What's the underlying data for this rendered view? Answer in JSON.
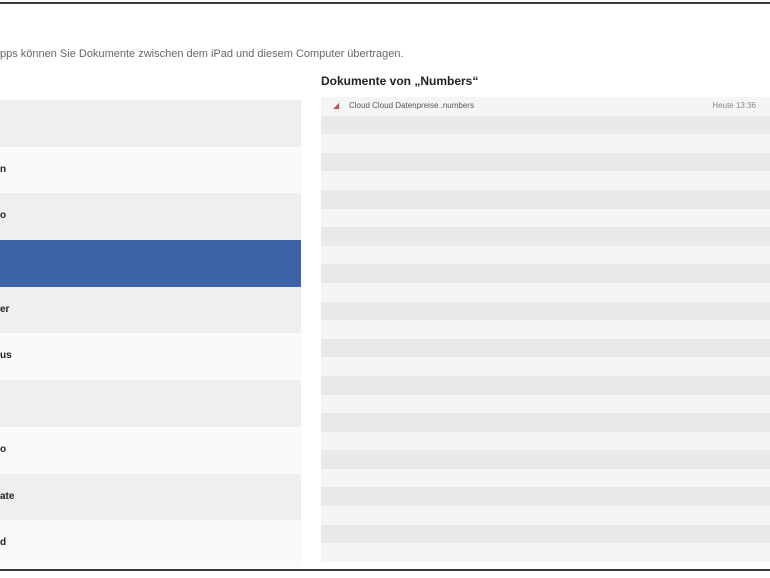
{
  "intro_text": "pps können Sie Dokumente zwischen dem iPad und diesem Computer übertragen.",
  "apps": [
    {
      "label": ""
    },
    {
      "label": "n"
    },
    {
      "label": "o"
    },
    {
      "label": "",
      "selected": true
    },
    {
      "label": "er"
    },
    {
      "label": "us"
    },
    {
      "label": ""
    },
    {
      "label": "o"
    },
    {
      "label": "ate"
    },
    {
      "label": "d"
    }
  ],
  "documents": {
    "title": "Dokumente von „Numbers“",
    "items": [
      {
        "name": "Cloud Cloud Datenpreise .numbers",
        "date": "Heute 13:36",
        "icon": "numbers-file-icon"
      }
    ]
  },
  "colors": {
    "selection": "#3d62a8"
  }
}
